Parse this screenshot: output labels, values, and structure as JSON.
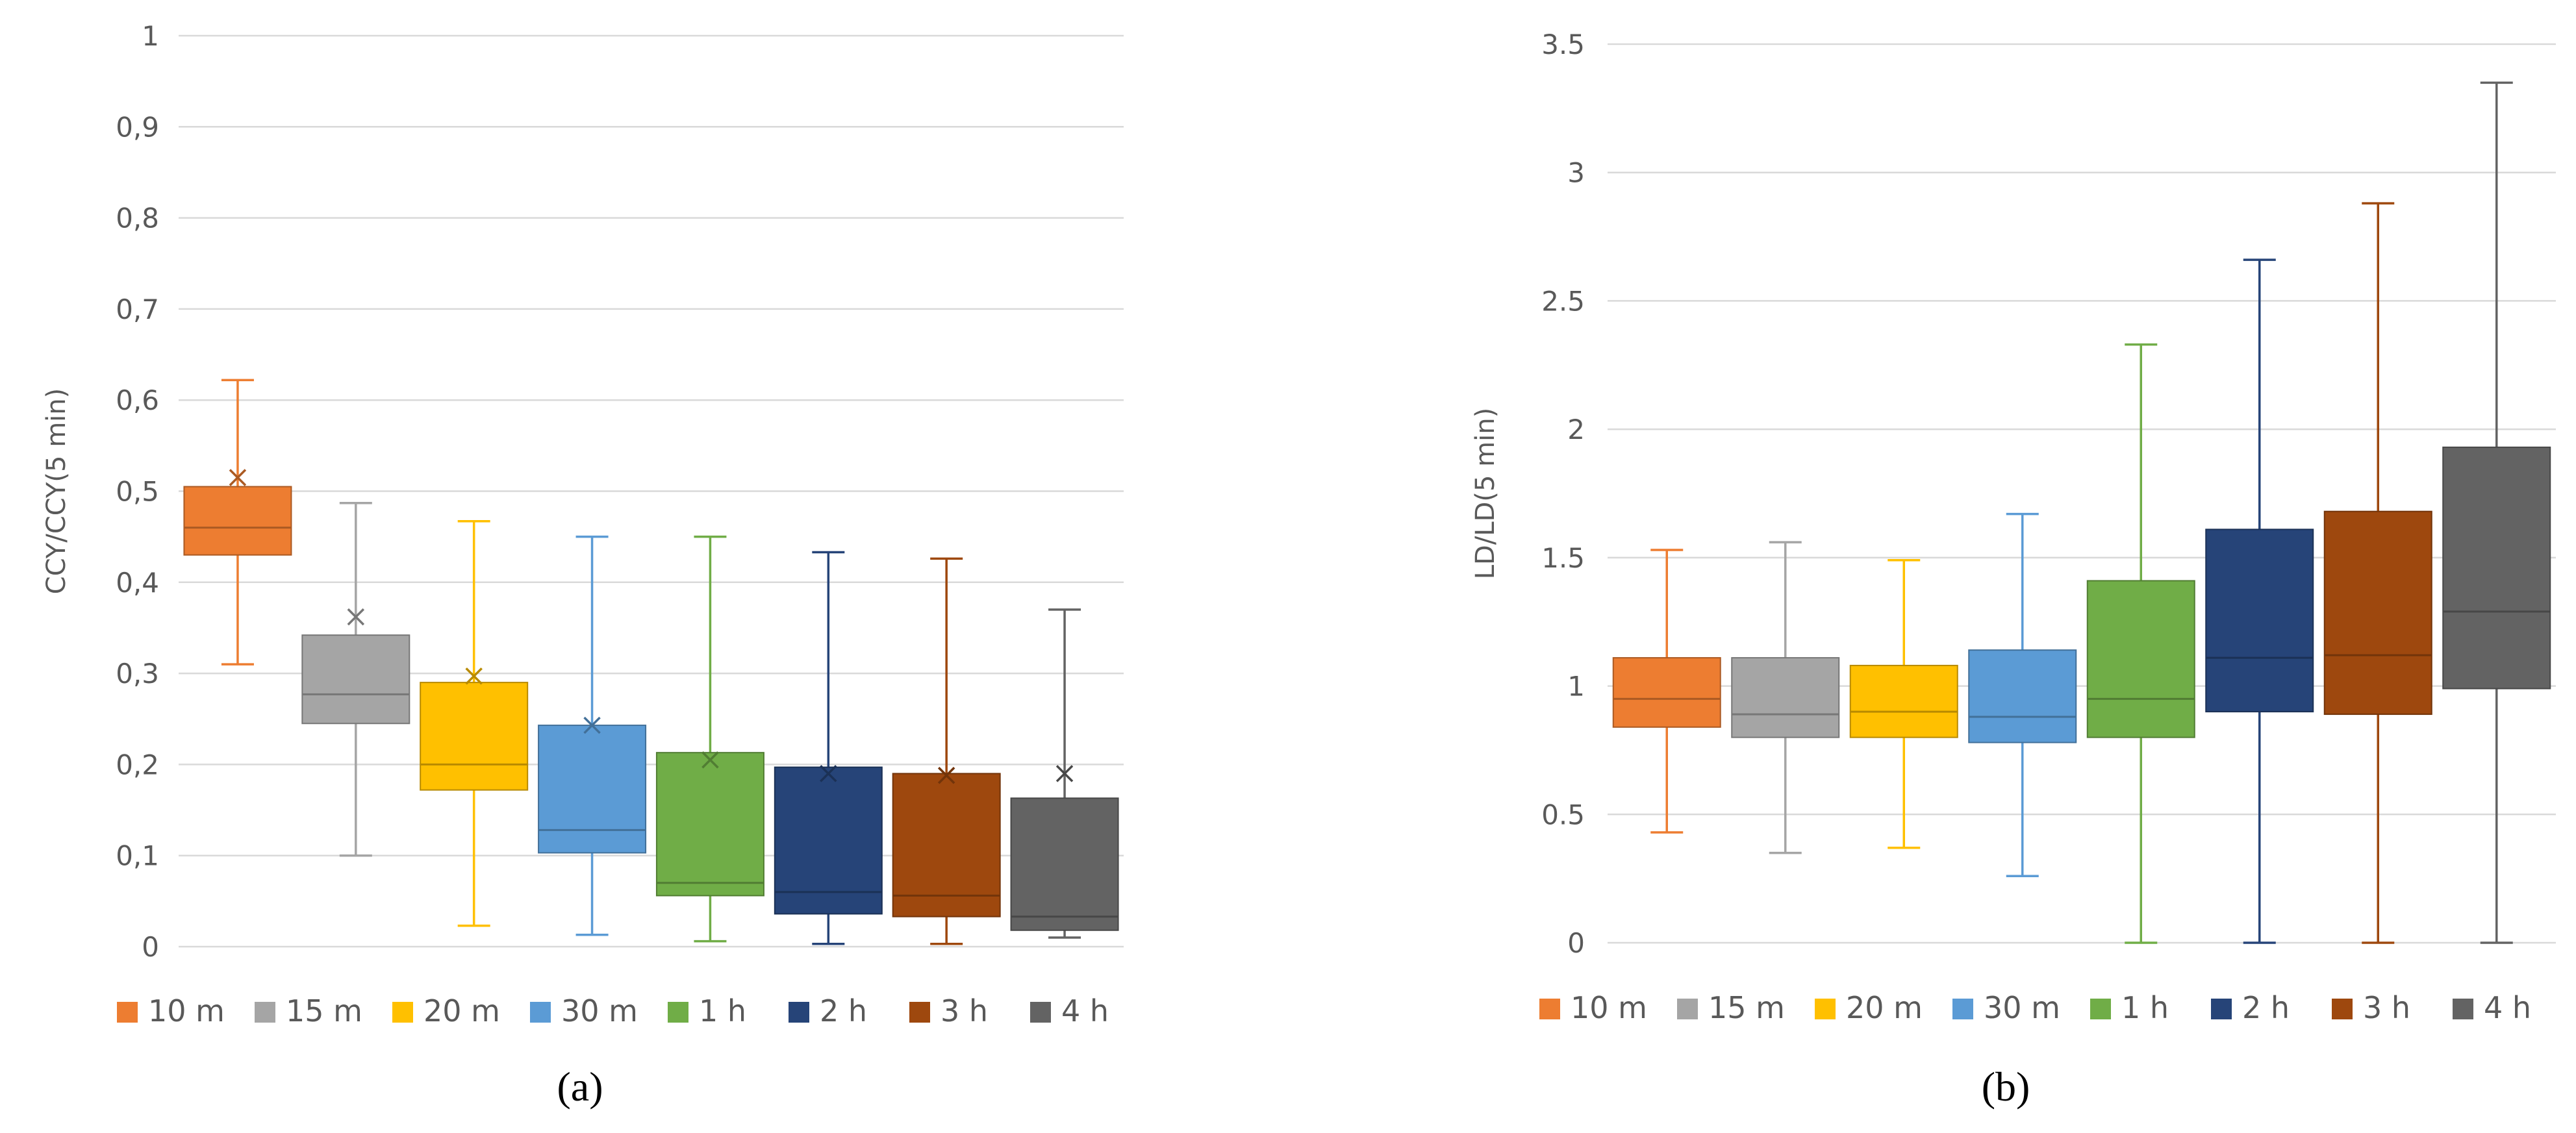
{
  "chart_data": [
    {
      "type": "box",
      "panel_label": "(a)",
      "ylabel": "CCY/CCY(5 min)",
      "ylim": [
        0,
        1
      ],
      "yticks": [
        "0",
        "0,1",
        "0,2",
        "0,3",
        "0,4",
        "0,5",
        "0,6",
        "0,7",
        "0,8",
        "0,9",
        "1"
      ],
      "grid": true,
      "legend_position": "bottom",
      "categories": [
        "10 m",
        "15 m",
        "20 m",
        "30 m",
        "1 h",
        "2 h",
        "3 h",
        "4 h"
      ],
      "boxes": [
        {
          "name": "10 m",
          "min": 0.31,
          "q1": 0.43,
          "median": 0.46,
          "q3": 0.505,
          "max": 0.622,
          "mean": 0.515
        },
        {
          "name": "15 m",
          "min": 0.1,
          "q1": 0.245,
          "median": 0.277,
          "q3": 0.342,
          "max": 0.487,
          "mean": 0.362
        },
        {
          "name": "20 m",
          "min": 0.023,
          "q1": 0.172,
          "median": 0.2,
          "q3": 0.29,
          "max": 0.467,
          "mean": 0.297
        },
        {
          "name": "30 m",
          "min": 0.013,
          "q1": 0.103,
          "median": 0.128,
          "q3": 0.243,
          "max": 0.45,
          "mean": 0.243
        },
        {
          "name": "1 h",
          "min": 0.006,
          "q1": 0.056,
          "median": 0.07,
          "q3": 0.213,
          "max": 0.45,
          "mean": 0.205
        },
        {
          "name": "2 h",
          "min": 0.003,
          "q1": 0.036,
          "median": 0.06,
          "q3": 0.197,
          "max": 0.433,
          "mean": 0.19
        },
        {
          "name": "3 h",
          "min": 0.003,
          "q1": 0.033,
          "median": 0.056,
          "q3": 0.19,
          "max": 0.426,
          "mean": 0.188
        },
        {
          "name": "4 h",
          "min": 0.01,
          "q1": 0.018,
          "median": 0.033,
          "q3": 0.163,
          "max": 0.37,
          "mean": 0.19
        }
      ]
    },
    {
      "type": "box",
      "panel_label": "(b)",
      "ylabel": "LD/LD(5 min)",
      "ylim": [
        0,
        3.5
      ],
      "yticks": [
        "0",
        "0.5",
        "1",
        "1.5",
        "2",
        "2.5",
        "3",
        "3.5"
      ],
      "grid": true,
      "legend_position": "bottom",
      "categories": [
        "10 m",
        "15 m",
        "20 m",
        "30 m",
        "1 h",
        "2 h",
        "3 h",
        "4 h"
      ],
      "boxes": [
        {
          "name": "10 m",
          "min": 0.43,
          "q1": 0.84,
          "median": 0.95,
          "q3": 1.11,
          "max": 1.53
        },
        {
          "name": "15 m",
          "min": 0.35,
          "q1": 0.8,
          "median": 0.89,
          "q3": 1.11,
          "max": 1.56
        },
        {
          "name": "20 m",
          "min": 0.37,
          "q1": 0.8,
          "median": 0.9,
          "q3": 1.08,
          "max": 1.49
        },
        {
          "name": "30 m",
          "min": 0.26,
          "q1": 0.78,
          "median": 0.88,
          "q3": 1.14,
          "max": 1.67
        },
        {
          "name": "1 h",
          "min": 0.0,
          "q1": 0.8,
          "median": 0.95,
          "q3": 1.41,
          "max": 2.33
        },
        {
          "name": "2 h",
          "min": 0.0,
          "q1": 0.9,
          "median": 1.11,
          "q3": 1.61,
          "max": 2.66
        },
        {
          "name": "3 h",
          "min": 0.0,
          "q1": 0.89,
          "median": 1.12,
          "q3": 1.68,
          "max": 2.88
        },
        {
          "name": "4 h",
          "min": 0.0,
          "q1": 0.99,
          "median": 1.29,
          "q3": 1.93,
          "max": 3.35
        }
      ]
    }
  ],
  "colors": {
    "10 m": "#ED7D31",
    "15 m": "#A5A5A5",
    "20 m": "#FFC000",
    "30 m": "#5B9BD5",
    "1 h": "#70AD47",
    "2 h": "#264478",
    "3 h": "#9E480E",
    "4 h": "#636363",
    "grid": "#D9D9D9",
    "text": "#595959"
  }
}
